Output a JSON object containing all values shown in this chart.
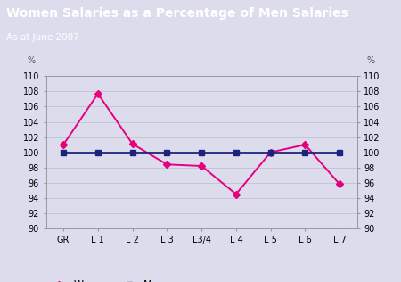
{
  "title": "Women Salaries as a Percentage of Men Salaries",
  "subtitle": "As at June 2007",
  "title_bg_color": "#4b2d8a",
  "title_text_color": "#ffffff",
  "plot_bg_color": "#dcdcec",
  "fig_bg_color": "#dcdcec",
  "categories": [
    "GR",
    "L 1",
    "L 2",
    "L 3",
    "L3/4",
    "L 4",
    "L 5",
    "L 6",
    "L 7"
  ],
  "women_values": [
    101.0,
    107.7,
    101.1,
    98.4,
    98.2,
    94.5,
    100.0,
    101.0,
    95.8
  ],
  "men_values": [
    100.0,
    100.0,
    100.0,
    100.0,
    100.0,
    100.0,
    100.0,
    100.0,
    100.0
  ],
  "women_color": "#e6007e",
  "men_color": "#1a237e",
  "ylim": [
    90,
    110
  ],
  "yticks": [
    90,
    92,
    94,
    96,
    98,
    100,
    102,
    104,
    106,
    108,
    110
  ],
  "ylabel_left": "%",
  "ylabel_right": "%",
  "legend_labels": [
    "Women",
    "Men"
  ],
  "title_fontsize": 10,
  "subtitle_fontsize": 7.5,
  "tick_fontsize": 7,
  "legend_fontsize": 8
}
